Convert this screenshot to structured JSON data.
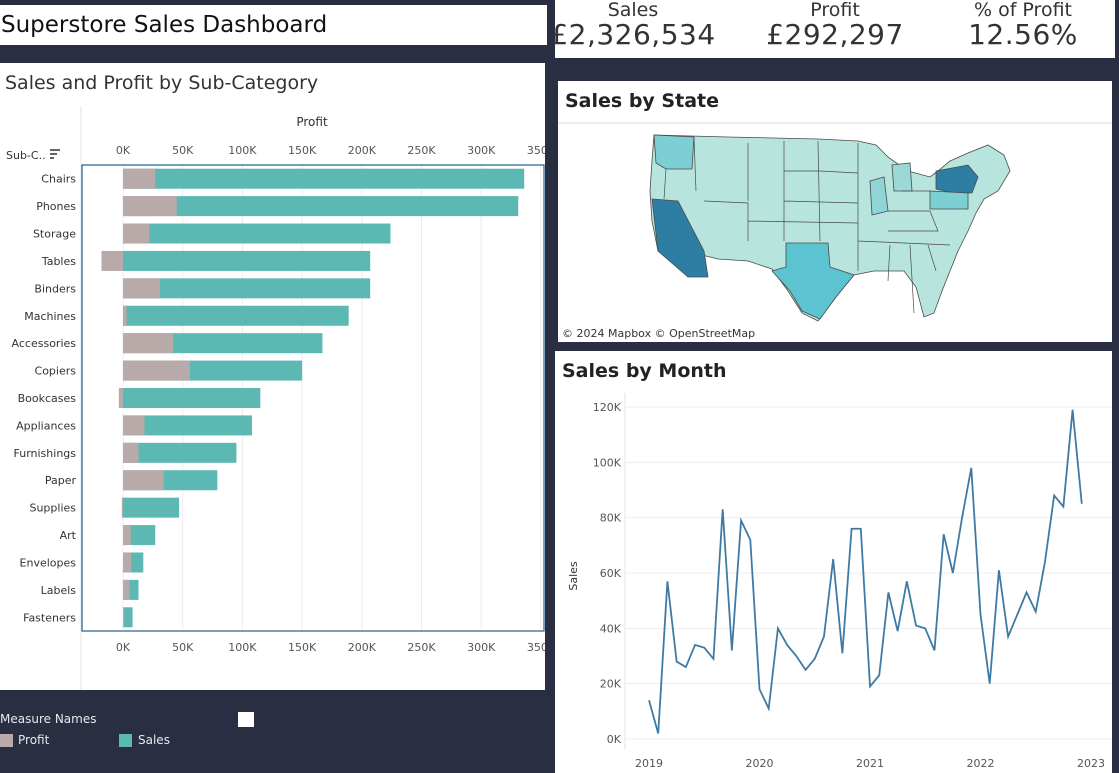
{
  "dashboard": {
    "title": "Superstore Sales Dashboard"
  },
  "kpis": [
    {
      "label": "Sales",
      "value": "£2,326,534"
    },
    {
      "label": "Profit",
      "value": "£292,297"
    },
    {
      "label": "% of Profit",
      "value": "12.56%"
    }
  ],
  "bar_panel": {
    "title": "Sales and Profit by Sub-Category",
    "axis_title": "Profit",
    "row_header": "Sub-C.."
  },
  "state_panel": {
    "title": "Sales by State",
    "attribution": "© 2024 Mapbox  © OpenStreetMap"
  },
  "month_panel": {
    "title": "Sales by Month"
  },
  "legend": {
    "title": "Measure Names",
    "items": [
      {
        "label": "Profit",
        "color": "#b8aaa8"
      },
      {
        "label": "Sales",
        "color": "#5bb8b3"
      }
    ]
  },
  "chart_data": [
    {
      "type": "bar",
      "title": "Sales and Profit by Sub-Category",
      "xlabel": "Profit",
      "ylabel": "Sub-C..",
      "xlim": [
        -30000,
        350000
      ],
      "xticks": [
        "0K",
        "50K",
        "100K",
        "150K",
        "200K",
        "250K",
        "300K",
        "350K"
      ],
      "categories": [
        "Chairs",
        "Phones",
        "Storage",
        "Tables",
        "Binders",
        "Machines",
        "Accessories",
        "Copiers",
        "Bookcases",
        "Appliances",
        "Furnishings",
        "Paper",
        "Supplies",
        "Art",
        "Envelopes",
        "Labels",
        "Fasteners"
      ],
      "series": [
        {
          "name": "Sales",
          "color": "#5bb8b3",
          "values": [
            336000,
            331000,
            224000,
            207000,
            207000,
            189000,
            167000,
            150000,
            115000,
            108000,
            95000,
            79000,
            47000,
            27000,
            17000,
            13000,
            8000
          ]
        },
        {
          "name": "Profit",
          "color": "#b8aaa8",
          "values": [
            27000,
            45000,
            22000,
            -18000,
            31000,
            3000,
            42000,
            56000,
            -3500,
            18000,
            13000,
            34000,
            -1000,
            6500,
            7000,
            5500,
            1000
          ]
        }
      ],
      "legend": "bottom-left"
    },
    {
      "type": "line",
      "title": "Sales by Month",
      "ylabel": "Sales",
      "ylim": [
        0,
        125000
      ],
      "yticks": [
        "0K",
        "20K",
        "40K",
        "60K",
        "80K",
        "100K",
        "120K"
      ],
      "xticks": [
        "2019",
        "2020",
        "2021",
        "2022",
        "2023"
      ],
      "x_start": "2019-01",
      "series": [
        {
          "name": "Sales",
          "color": "#4e79a7",
          "values": [
            14000,
            2000,
            57000,
            28000,
            26000,
            34000,
            33000,
            29000,
            83000,
            32000,
            79000,
            72000,
            18000,
            11000,
            40000,
            34000,
            30000,
            25000,
            29000,
            37000,
            65000,
            31000,
            76000,
            76000,
            19000,
            23000,
            53000,
            39000,
            57000,
            41000,
            40000,
            32000,
            74000,
            60000,
            80000,
            98000,
            45000,
            20000,
            61000,
            37000,
            45000,
            53000,
            46000,
            64000,
            88000,
            84000,
            119000,
            85000
          ]
        }
      ]
    },
    {
      "type": "map",
      "title": "Sales by State",
      "highlight_states": [
        "California",
        "New York",
        "Texas",
        "Washington",
        "Pennsylvania"
      ]
    }
  ]
}
